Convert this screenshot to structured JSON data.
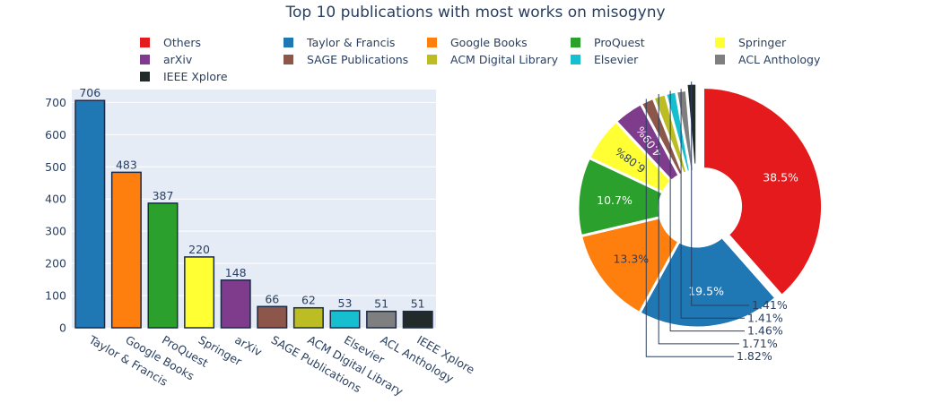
{
  "title": "Top 10 publications with most works on misogyny",
  "legend": [
    {
      "label": "Others",
      "color": "#e41a1c"
    },
    {
      "label": "Taylor & Francis",
      "color": "#1f77b4"
    },
    {
      "label": "Google Books",
      "color": "#ff7f0e"
    },
    {
      "label": "ProQuest",
      "color": "#2ca02c"
    },
    {
      "label": "Springer",
      "color": "#ffff33"
    },
    {
      "label": "arXiv",
      "color": "#7f3c8d"
    },
    {
      "label": "SAGE Publications",
      "color": "#8c564b"
    },
    {
      "label": "ACM Digital Library",
      "color": "#bcbd22"
    },
    {
      "label": "Elsevier",
      "color": "#17becf"
    },
    {
      "label": "ACL Anthology",
      "color": "#7f7f7f"
    },
    {
      "label": "IEEE Xplore",
      "color": "#222a2a"
    }
  ],
  "chart_data": [
    {
      "type": "bar",
      "categories": [
        "Taylor & Francis",
        "Google Books",
        "ProQuest",
        "Springer",
        "arXiv",
        "SAGE Publications",
        "ACM Digital Library",
        "Elsevier",
        "ACL Anthology",
        "IEEE Xplore"
      ],
      "values": [
        706,
        483,
        387,
        220,
        148,
        66,
        62,
        53,
        51,
        51
      ],
      "colors": [
        "#1f77b4",
        "#ff7f0e",
        "#2ca02c",
        "#ffff33",
        "#7f3c8d",
        "#8c564b",
        "#bcbd22",
        "#17becf",
        "#7f7f7f",
        "#222a2a"
      ],
      "ylim": [
        0,
        740
      ],
      "yticks": [
        0,
        100,
        200,
        300,
        400,
        500,
        600,
        700
      ],
      "grid": true,
      "data_labels": "outside"
    },
    {
      "type": "pie",
      "hole": true,
      "labels": [
        "Others",
        "Taylor & Francis",
        "Google Books",
        "ProQuest",
        "Springer",
        "arXiv",
        "SAGE Publications",
        "ACM Digital Library",
        "Elsevier",
        "ACL Anthology",
        "IEEE Xplore"
      ],
      "percent_labels": [
        "38.5%",
        "19.5%",
        "13.3%",
        "10.7%",
        "6.08%",
        "4.09%",
        "1.82%",
        "1.71%",
        "1.46%",
        "1.41%",
        "1.41%"
      ],
      "values": [
        38.5,
        19.5,
        13.3,
        10.7,
        6.08,
        4.09,
        1.82,
        1.71,
        1.46,
        1.41,
        1.41
      ],
      "colors": [
        "#e41a1c",
        "#1f77b4",
        "#ff7f0e",
        "#2ca02c",
        "#ffff33",
        "#7f3c8d",
        "#8c564b",
        "#bcbd22",
        "#17becf",
        "#7f7f7f",
        "#222a2a"
      ],
      "pulled": [
        "Others",
        "IEEE Xplore"
      ]
    }
  ]
}
